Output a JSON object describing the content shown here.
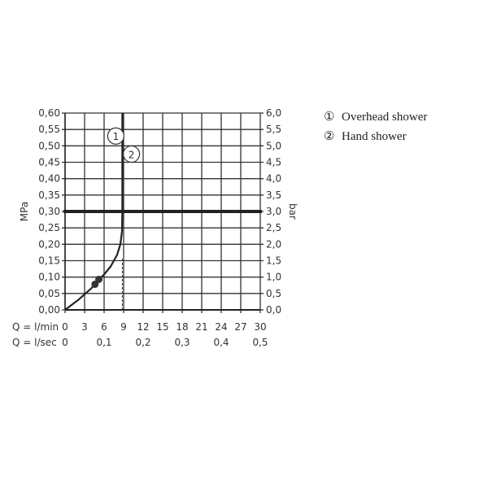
{
  "chart_data": {
    "type": "line",
    "xlabel_primary": "Q = l/min",
    "xlabel_secondary": "Q = l/sec",
    "ylabel_left": "MPa",
    "ylabel_right": "bar",
    "xlim": [
      0,
      30
    ],
    "ylim": [
      0,
      0.6
    ],
    "x_ticks": [
      "0",
      "3",
      "6",
      "9",
      "12",
      "15",
      "18",
      "21",
      "24",
      "27",
      "30"
    ],
    "x2_ticks": [
      {
        "value": 0,
        "label": "0"
      },
      {
        "value": 0.1,
        "label": "0,1"
      },
      {
        "value": 0.2,
        "label": "0,2"
      },
      {
        "value": 0.3,
        "label": "0,3"
      },
      {
        "value": 0.4,
        "label": "0,4"
      },
      {
        "value": 0.5,
        "label": "0,5"
      }
    ],
    "y_ticks": [
      "0,00",
      "0,05",
      "0,10",
      "0,15",
      "0,20",
      "0,25",
      "0,30",
      "0,35",
      "0,40",
      "0,45",
      "0,50",
      "0,55",
      "0,60"
    ],
    "y2_ticks": [
      "0,0",
      "0,5",
      "1,0",
      "1,5",
      "2,0",
      "2,5",
      "3,0",
      "3,5",
      "4,0",
      "4,5",
      "5,0",
      "5,5",
      "6,0"
    ],
    "grid": true,
    "reference_line_y": 0.3,
    "series": [
      {
        "x": [
          0,
          2,
          4,
          5,
          6,
          7,
          8,
          8.5,
          8.75,
          8.8,
          8.8
        ],
        "y": [
          0,
          0.03,
          0.065,
          0.088,
          0.108,
          0.132,
          0.168,
          0.2,
          0.24,
          0.3,
          0.6
        ]
      }
    ],
    "markers": [
      {
        "x": 4.6,
        "y": 0.078
      },
      {
        "x": 5.2,
        "y": 0.093
      }
    ],
    "dashed_line": {
      "x": 8.8,
      "y": [
        0,
        0.16
      ]
    },
    "callouts": [
      {
        "label": "1",
        "x": 7.8,
        "y": 0.53
      },
      {
        "label": "2",
        "x": 10.2,
        "y": 0.475
      }
    ],
    "legend": [
      {
        "symbol": "①",
        "label": "Overhead shower"
      },
      {
        "symbol": "②",
        "label": "Hand shower"
      }
    ],
    "legend_position": "right"
  }
}
